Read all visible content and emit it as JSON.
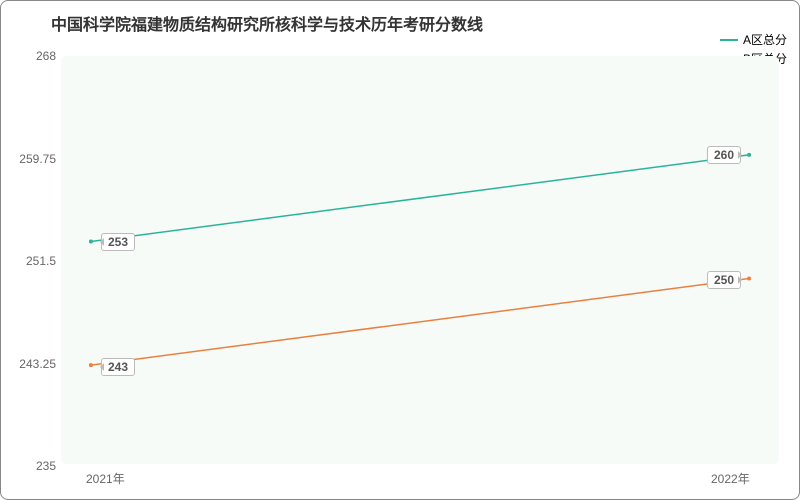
{
  "chart": {
    "type": "line",
    "title": "中国科学院福建物质结构研究所核科学与技术历年考研分数线",
    "title_fontsize": 16,
    "title_color": "#333333",
    "background_color": "#ffffff",
    "plot_background_color": "#f6fbf8",
    "border_color": "#888888",
    "label_fontsize": 12,
    "ylim": [
      235,
      268
    ],
    "yticks": [
      235,
      243.25,
      251.5,
      259.75,
      268
    ],
    "ytick_labels": [
      "235",
      "243.25",
      "251.5",
      "259.75",
      "268"
    ],
    "xlabels": [
      "2021年",
      "2022年"
    ],
    "categories": [
      "2021年",
      "2022年"
    ],
    "axis_label_color": "#666666",
    "line_width": 1.5,
    "series": [
      {
        "name": "A区总分",
        "color": "#2bb39a",
        "values": [
          253,
          260
        ],
        "marker": "circle",
        "marker_size": 4
      },
      {
        "name": "B区总分",
        "color": "#e9803f",
        "values": [
          243,
          250
        ],
        "marker": "circle",
        "marker_size": 4
      }
    ],
    "data_labels": [
      "253",
      "260",
      "243",
      "250"
    ],
    "legend": {
      "position": "top-right",
      "fontsize": 12,
      "color": "#444444"
    }
  }
}
